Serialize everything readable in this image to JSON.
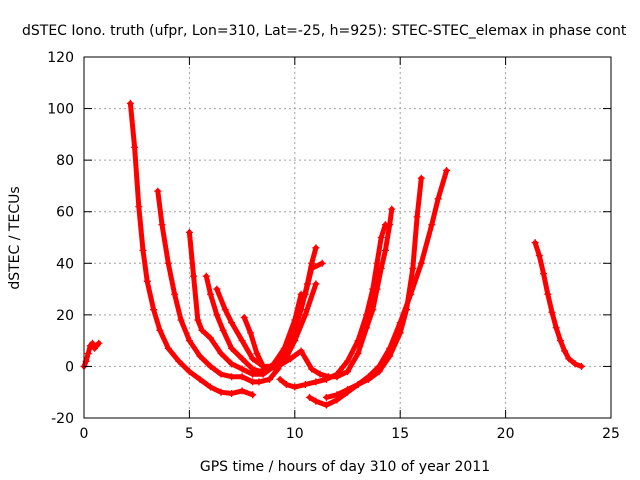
{
  "chart_data": {
    "type": "scatter",
    "title": "dSTEC Iono. truth (ufpr, Lon=310, Lat=-25, h=925): STEC-STEC_elemax in phase cont",
    "xlabel": "GPS time / hours of day 310 of year 2011",
    "ylabel": "dSTEC  / TECUs",
    "xlim": [
      0,
      25
    ],
    "ylim": [
      -20,
      120
    ],
    "xticks": [
      0,
      5,
      10,
      15,
      20,
      25
    ],
    "yticks": [
      -20,
      0,
      20,
      40,
      60,
      80,
      100,
      120
    ],
    "xtick_labels": [
      "0",
      "5",
      "10",
      "15",
      "20",
      "25"
    ],
    "ytick_labels": [
      "-20",
      "0",
      "20",
      "40",
      "60",
      "80",
      "100",
      "120"
    ],
    "grid": true,
    "legend": "none",
    "marker": "+",
    "color": "#ff0000",
    "series": [
      {
        "points": [
          [
            0.0,
            0
          ],
          [
            0.1,
            2
          ],
          [
            0.2,
            5
          ],
          [
            0.3,
            8
          ],
          [
            0.4,
            9
          ],
          [
            0.5,
            7
          ],
          [
            0.6,
            8
          ],
          [
            0.7,
            9
          ]
        ]
      },
      {
        "points": [
          [
            2.2,
            102
          ],
          [
            2.4,
            85
          ],
          [
            2.6,
            62
          ],
          [
            2.8,
            45
          ],
          [
            3.0,
            33
          ],
          [
            3.3,
            22
          ],
          [
            3.6,
            14
          ],
          [
            4.0,
            7
          ],
          [
            4.5,
            2
          ],
          [
            5.0,
            -2
          ],
          [
            5.5,
            -5
          ],
          [
            6.0,
            -8
          ],
          [
            6.5,
            -10
          ],
          [
            7.0,
            -10.5
          ],
          [
            7.5,
            -9.5
          ],
          [
            8.0,
            -11
          ]
        ]
      },
      {
        "points": [
          [
            3.5,
            68
          ],
          [
            3.7,
            55
          ],
          [
            4.0,
            40
          ],
          [
            4.3,
            28
          ],
          [
            4.6,
            18
          ],
          [
            5.0,
            10
          ],
          [
            5.5,
            4
          ],
          [
            6.0,
            0
          ],
          [
            6.5,
            -3
          ],
          [
            7.0,
            -4
          ],
          [
            7.5,
            -4
          ],
          [
            8.0,
            -6
          ],
          [
            8.3,
            -6
          ],
          [
            8.8,
            -5
          ],
          [
            9.2,
            -1
          ],
          [
            9.6,
            5
          ],
          [
            10.0,
            14
          ],
          [
            10.3,
            22
          ],
          [
            10.6,
            32
          ],
          [
            10.8,
            40
          ],
          [
            11.0,
            46
          ]
        ]
      },
      {
        "points": [
          [
            5.0,
            52
          ],
          [
            5.2,
            35
          ],
          [
            5.4,
            18
          ],
          [
            5.6,
            14
          ],
          [
            6.0,
            11
          ],
          [
            6.5,
            5
          ],
          [
            7.0,
            1
          ],
          [
            7.5,
            -1
          ],
          [
            8.0,
            -3
          ],
          [
            8.5,
            -3
          ],
          [
            9.0,
            0
          ],
          [
            9.5,
            6
          ],
          [
            10.0,
            16
          ],
          [
            10.5,
            28
          ],
          [
            10.8,
            38
          ],
          [
            11.3,
            40
          ]
        ]
      },
      {
        "points": [
          [
            5.8,
            35
          ],
          [
            6.0,
            28
          ],
          [
            6.3,
            20
          ],
          [
            6.6,
            14
          ],
          [
            7.0,
            7
          ],
          [
            7.5,
            3
          ],
          [
            8.0,
            -1
          ],
          [
            8.4,
            -2
          ],
          [
            8.7,
            -1
          ],
          [
            9.0,
            1
          ],
          [
            9.5,
            7
          ],
          [
            10.0,
            18
          ],
          [
            10.3,
            28
          ]
        ]
      },
      {
        "points": [
          [
            6.3,
            30
          ],
          [
            6.7,
            22
          ],
          [
            7.0,
            17
          ],
          [
            7.5,
            10
          ],
          [
            8.0,
            3
          ],
          [
            8.5,
            0
          ],
          [
            9.0,
            0
          ],
          [
            9.5,
            2
          ],
          [
            10.0,
            10
          ],
          [
            10.5,
            20
          ],
          [
            11.0,
            32
          ]
        ]
      },
      {
        "points": [
          [
            7.6,
            19
          ],
          [
            7.9,
            13
          ],
          [
            8.2,
            5
          ],
          [
            8.5,
            0
          ],
          [
            8.8,
            -1
          ],
          [
            9.2,
            0
          ],
          [
            9.8,
            3
          ],
          [
            10.3,
            6
          ],
          [
            10.8,
            -1
          ],
          [
            11.2,
            -3
          ],
          [
            11.6,
            -4
          ],
          [
            12.0,
            -4
          ],
          [
            12.5,
            -2
          ],
          [
            13.0,
            5
          ],
          [
            13.4,
            15
          ],
          [
            13.7,
            22
          ],
          [
            13.9,
            30
          ],
          [
            14.1,
            38
          ],
          [
            14.3,
            45
          ],
          [
            14.5,
            55
          ],
          [
            14.6,
            61
          ]
        ]
      },
      {
        "points": [
          [
            9.3,
            -5
          ],
          [
            9.6,
            -7
          ],
          [
            10.0,
            -8
          ],
          [
            10.5,
            -7
          ],
          [
            11.0,
            -6
          ],
          [
            11.5,
            -5
          ],
          [
            12.0,
            -3
          ],
          [
            12.5,
            2
          ],
          [
            13.0,
            10
          ],
          [
            13.4,
            20
          ],
          [
            13.7,
            30
          ],
          [
            13.9,
            40
          ],
          [
            14.1,
            50
          ],
          [
            14.3,
            55
          ]
        ]
      },
      {
        "points": [
          [
            10.7,
            -12
          ],
          [
            11.0,
            -13.5
          ],
          [
            11.5,
            -15
          ],
          [
            12.0,
            -13
          ],
          [
            12.5,
            -10
          ],
          [
            13.0,
            -7
          ],
          [
            13.5,
            -4
          ],
          [
            14.0,
            0
          ],
          [
            14.5,
            7
          ],
          [
            15.0,
            17
          ],
          [
            15.5,
            28
          ],
          [
            16.0,
            40
          ],
          [
            16.5,
            55
          ],
          [
            16.8,
            65
          ],
          [
            17.2,
            76
          ]
        ]
      },
      {
        "points": [
          [
            11.5,
            -12
          ],
          [
            12.0,
            -11
          ],
          [
            12.5,
            -9
          ],
          [
            13.0,
            -7
          ],
          [
            13.5,
            -5
          ],
          [
            14.0,
            -2
          ],
          [
            14.5,
            4
          ],
          [
            15.0,
            13
          ],
          [
            15.3,
            22
          ],
          [
            15.6,
            38
          ],
          [
            15.8,
            58
          ],
          [
            16.0,
            73
          ]
        ]
      },
      {
        "points": [
          [
            21.4,
            48
          ],
          [
            21.6,
            43
          ],
          [
            21.8,
            36
          ],
          [
            22.0,
            28
          ],
          [
            22.2,
            21
          ],
          [
            22.4,
            15
          ],
          [
            22.6,
            10
          ],
          [
            22.8,
            6
          ],
          [
            23.0,
            3
          ],
          [
            23.3,
            1
          ],
          [
            23.6,
            0
          ]
        ]
      }
    ]
  }
}
